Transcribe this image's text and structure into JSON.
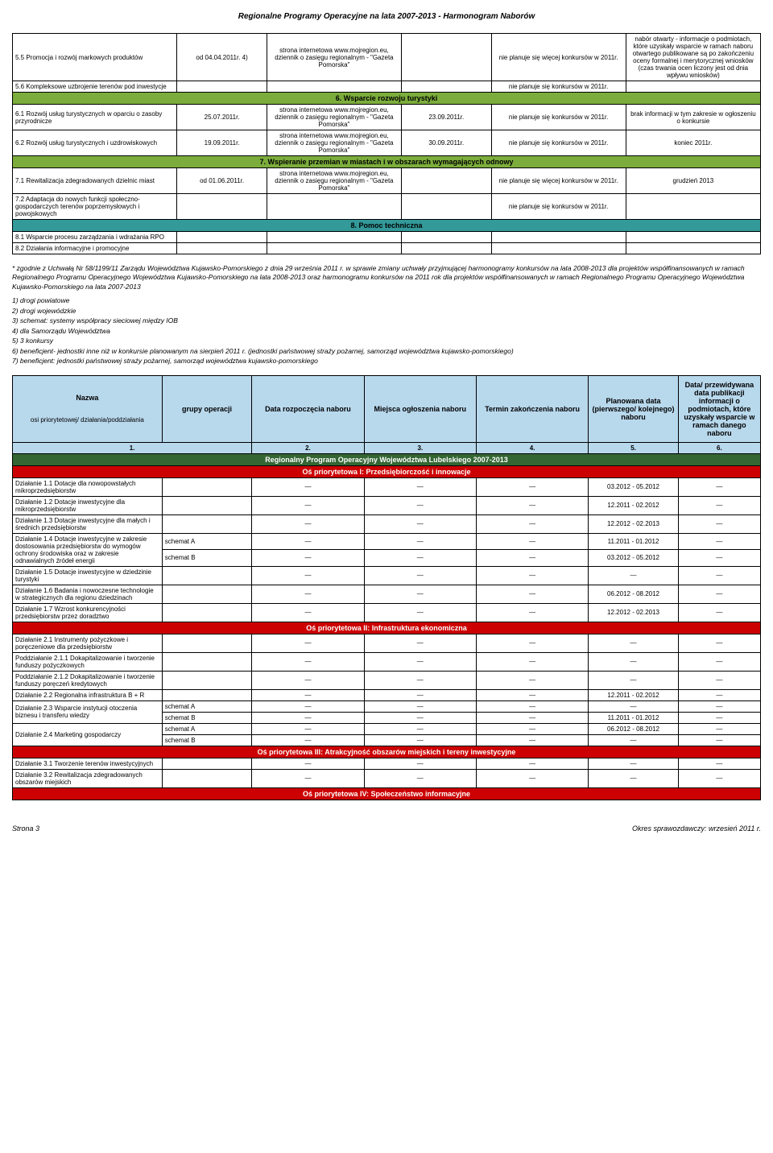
{
  "header": "Regionalne Programy Operacyjne na lata 2007-2013 - Harmonogram Naborów",
  "table1": {
    "rows": [
      {
        "c1": "5.5 Promocja i rozwój markowych produktów",
        "c2": "od 04.04.2011r. 4)",
        "c3": "strona internetowa www.mojregion.eu, dziennik o zasięgu regionalnym - \"Gazeta Pomorska\"",
        "c4": "",
        "c5": "nie planuje się więcej konkursów w 2011r.",
        "c6": "nabór otwarty - informacje o podmiotach, które uzyskały wsparcie w ramach naboru otwartego publikowane są po zakończeniu oceny formalnej i merytorycznej wniosków (czas trwania ocen liczony jest od dnia wpływu wniosków)"
      },
      {
        "c1": "5.6 Kompleksowe uzbrojenie terenów pod inwestycje",
        "c2": "",
        "c3": "",
        "c4": "",
        "c5": "nie planuje się konkursów w 2011r.",
        "c6": ""
      }
    ],
    "section6": "6. Wsparcie rozwoju turystyki",
    "rows6": [
      {
        "c1": "6.1 Rozwój usług turystycznych w oparciu o zasoby przyrodnicze",
        "c2": "25.07.2011r.",
        "c3": "strona internetowa www.mojregion.eu, dziennik o zasięgu regionalnym - \"Gazeta Pomorska\"",
        "c4": "23.09.2011r.",
        "c5": "nie planuje się konkursów w 2011r.",
        "c6": "brak informacji w tym zakresie w ogłoszeniu o konkursie"
      },
      {
        "c1": "6.2 Rozwój usług turystycznych i uzdrowiskowych",
        "c2": "19.09.2011r.",
        "c3": "strona internetowa www.mojregion.eu, dziennik o zasięgu regionalnym - \"Gazeta Pomorska\"",
        "c4": "30.09.2011r.",
        "c5": "nie planuje się konkursów w 2011r.",
        "c6": "koniec 2011r."
      }
    ],
    "section7": "7. Wspieranie przemian w miastach i w obszarach wymagających odnowy",
    "rows7": [
      {
        "c1": "7.1 Rewitalizacja zdegradowanych dzielnic miast",
        "c2": "od 01.06.2011r.",
        "c3": "strona internetowa www.mojregion.eu, dziennik o zasięgu regionalnym - \"Gazeta Pomorska\"",
        "c4": "",
        "c5": "nie planuje się więcej konkursów w 2011r.",
        "c6": "grudzień 2013"
      },
      {
        "c1": "7.2 Adaptacja do nowych funkcji społeczno-gospodarczych terenów poprzemysłowych i powojskowych",
        "c2": "",
        "c3": "",
        "c4": "",
        "c5": "nie planuje się konkursów w 2011r.",
        "c6": ""
      }
    ],
    "section8": "8. Pomoc techniczna",
    "rows8": [
      {
        "c1": "8.1 Wsparcie procesu zarządzania i wdrażania RPO",
        "c2": "",
        "c3": "",
        "c4": "",
        "c5": "",
        "c6": ""
      },
      {
        "c1": "8.2 Działania informacyjne i promocyjne",
        "c2": "",
        "c3": "",
        "c4": "",
        "c5": "",
        "c6": ""
      }
    ]
  },
  "notes": {
    "main": "* zgodnie z Uchwałą Nr 58/1199/11 Zarządu Województwa Kujawsko-Pomorskiego z dnia 29 września 2011 r. w sprawie zmiany uchwały przyjmującej harmonogramy konkursów na lata 2008-2013 dla projektów współfinansowanych w ramach Regionalnego Programu Operacyjnego Województwa Kujawsko-Pomorskiego na lata 2008-2013 oraz harmonogramu konkursów na 2011 rok dla projektów współfinansowanych w ramach Regionalnego Programu Operacyjnego Województwa Kujawsko-Pomorskiego na lata 2007-2013",
    "fn": [
      "1) drogi powiatowe",
      "2) drogi wojewódzkie",
      "3) schemat: systemy współpracy sieciowej między IOB",
      "4) dla Samorządu Województwa",
      "5) 3 konkursy",
      "6) beneficjent- jednostki inne niż w konkursie planowanym na sierpień 2011 r. (jednostki państwowej straży pożarnej, samorząd województwa kujawsko-pomorskiego)",
      "7) beneficjent: jednostki państwowej straży pożarnej, samorząd województwa kujawsko-pomorskiego"
    ]
  },
  "table2": {
    "headers": {
      "name": "Nazwa",
      "name2": "osi priorytetowej/ działania/poddziałania",
      "group": "grupy operacji",
      "start": "Data rozpoczęcia naboru",
      "place": "Miejsca ogłoszenia naboru",
      "end": "Termin zakończenia naboru",
      "planned": "Planowana data (pierwszego/ kolejnego) naboru",
      "pub": "Data/ przewidywana data publikacji informacji o podmiotach, które uzyskały wsparcie w ramach danego naboru"
    },
    "nums": [
      "1.",
      "2.",
      "3.",
      "4.",
      "5.",
      "6."
    ],
    "program": "Regionalny Program Operacyjny Województwa Lubelskiego 2007-2013",
    "axis1": "Oś priorytetowa I: Przedsiębiorczość i innowacje",
    "rows1": [
      {
        "c1": "Działanie 1.1 Dotacje dla nowopowstałych mikroprzedsiębiorstw",
        "c2": "",
        "c3": "—",
        "c4": "—",
        "c5": "—",
        "c6": "03.2012 - 05.2012",
        "c7": "—"
      },
      {
        "c1": "Działanie 1.2 Dotacje inwestycyjne dla mikroprzedsiębiorstw",
        "c2": "",
        "c3": "—",
        "c4": "—",
        "c5": "—",
        "c6": "12.2011 - 02.2012",
        "c7": "—"
      },
      {
        "c1": "Działanie 1.3 Dotacje inwestycyjne dla małych i średnich przedsiębiorstw",
        "c2": "",
        "c3": "—",
        "c4": "—",
        "c5": "—",
        "c6": "12.2012 - 02.2013",
        "c7": "—"
      },
      {
        "c1": "Działanie 1.4 Dotacje inwestycyjne w zakresie dostosowania przedsiębiorstw do wymogów ochrony środowiska oraz w zakresie odnawialnych źródeł energii",
        "c2": "schemat A",
        "c3": "—",
        "c4": "—",
        "c5": "—",
        "c6": "11.2011 - 01.2012",
        "c7": "—",
        "rowspan": 2
      },
      {
        "c2": "schemat B",
        "c3": "—",
        "c4": "—",
        "c5": "—",
        "c6": "03.2012 - 05.2012",
        "c7": "—"
      },
      {
        "c1": "Działanie 1.5 Dotacje inwestycyjne w dziedzinie turystyki",
        "c2": "",
        "c3": "—",
        "c4": "—",
        "c5": "—",
        "c6": "—",
        "c7": "—"
      },
      {
        "c1": "Działanie 1.6 Badania i nowoczesne technologie w strategicznych dla regionu dziedzinach",
        "c2": "",
        "c3": "—",
        "c4": "—",
        "c5": "—",
        "c6": "06.2012 - 08.2012",
        "c7": "—"
      },
      {
        "c1": "Działanie 1.7 Wzrost konkurencyjności przedsiębiorstw przez doradztwo",
        "c2": "",
        "c3": "—",
        "c4": "—",
        "c5": "—",
        "c6": "12.2012 - 02.2013",
        "c7": "—"
      }
    ],
    "axis2": "Oś priorytetowa II: Infrastruktura ekonomiczna",
    "rows2": [
      {
        "c1": "Działanie 2.1 Instrumenty pożyczkowe i poręczeniowe dla przedsiębiorstw",
        "c2": "",
        "c3": "—",
        "c4": "—",
        "c5": "—",
        "c6": "—",
        "c7": "—"
      },
      {
        "c1": "Poddziałanie 2.1.1 Dokapitalizowanie i tworzenie funduszy pożyczkowych",
        "c2": "",
        "c3": "—",
        "c4": "—",
        "c5": "—",
        "c6": "—",
        "c7": "—"
      },
      {
        "c1": "Poddziałanie 2.1.2 Dokapitalizowanie i tworzenie funduszy poręczeń kredytowych",
        "c2": "",
        "c3": "—",
        "c4": "—",
        "c5": "—",
        "c6": "—",
        "c7": "—"
      },
      {
        "c1": "Działanie 2.2 Regionalna infrastruktura B + R",
        "c2": "",
        "c3": "—",
        "c4": "—",
        "c5": "—",
        "c6": "12.2011 - 02.2012",
        "c7": "—"
      },
      {
        "c1": "Działanie 2.3 Wsparcie instytucji otoczenia biznesu i transferu wiedzy",
        "c2": "schemat A",
        "c3": "—",
        "c4": "—",
        "c5": "—",
        "c6": "—",
        "c7": "—",
        "rowspan": 2
      },
      {
        "c2": "schemat B",
        "c3": "—",
        "c4": "—",
        "c5": "—",
        "c6": "11.2011 - 01.2012",
        "c7": "—"
      },
      {
        "c1": "Działanie 2.4 Marketing gospodarczy",
        "c2": "schemat A",
        "c3": "—",
        "c4": "—",
        "c5": "—",
        "c6": "06.2012 - 08.2012",
        "c7": "—",
        "rowspan": 2
      },
      {
        "c2": "schemat B",
        "c3": "—",
        "c4": "—",
        "c5": "—",
        "c6": "—",
        "c7": "—"
      }
    ],
    "axis3": "Oś priorytetowa III: Atrakcyjność obszarów miejskich i tereny inwestycyjne",
    "rows3": [
      {
        "c1": "Działanie 3.1 Tworzenie terenów inwestycyjnych",
        "c2": "",
        "c3": "—",
        "c4": "—",
        "c5": "—",
        "c6": "—",
        "c7": "—"
      },
      {
        "c1": "Działanie 3.2 Rewitalizacja zdegradowanych obszarów miejskich",
        "c2": "",
        "c3": "—",
        "c4": "—",
        "c5": "—",
        "c6": "—",
        "c7": "—"
      }
    ],
    "axis4": "Oś priorytetowa IV: Społeczeństwo informacyjne"
  },
  "footer": {
    "left": "Strona 3",
    "right": "Okres sprawozdawczy: wrzesień 2011 r."
  }
}
